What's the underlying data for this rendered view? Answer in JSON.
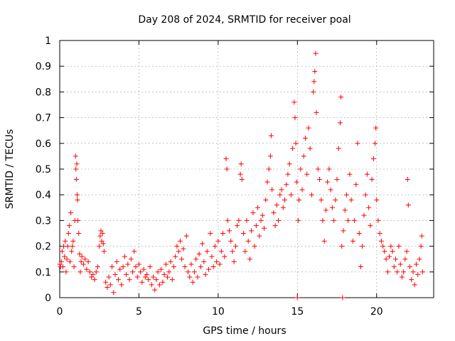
{
  "chart_data": {
    "type": "scatter",
    "title": "Day 208 of 2024, SRMTID for receiver poal",
    "xlabel": "GPS time / hours",
    "ylabel": "SRMTID / TECUs",
    "xlim": [
      0,
      23.6
    ],
    "ylim": [
      0,
      1
    ],
    "xticks": [
      "0",
      "5",
      "10",
      "15",
      "20"
    ],
    "yticks": [
      "0",
      "0.1",
      "0.2",
      "0.3",
      "0.4",
      "0.5",
      "0.6",
      "0.7",
      "0.8",
      "0.9",
      "1"
    ],
    "grid": true,
    "marker": "+",
    "color": "#ff0000",
    "series": [
      {
        "name": "SRMTID",
        "points": [
          [
            0.0,
            0.13
          ],
          [
            0.05,
            0.12
          ],
          [
            0.1,
            0.14
          ],
          [
            0.15,
            0.18
          ],
          [
            0.2,
            0.12
          ],
          [
            0.25,
            0.2
          ],
          [
            0.3,
            0.16
          ],
          [
            0.35,
            0.22
          ],
          [
            0.4,
            0.1
          ],
          [
            0.45,
            0.15
          ],
          [
            0.5,
            0.2
          ],
          [
            0.55,
            0.25
          ],
          [
            0.6,
            0.28
          ],
          [
            0.65,
            0.14
          ],
          [
            0.7,
            0.33
          ],
          [
            0.75,
            0.18
          ],
          [
            0.8,
            0.2
          ],
          [
            0.85,
            0.22
          ],
          [
            0.9,
            0.12
          ],
          [
            0.95,
            0.3
          ],
          [
            1.0,
            0.55
          ],
          [
            1.02,
            0.5
          ],
          [
            1.05,
            0.46
          ],
          [
            1.08,
            0.52
          ],
          [
            1.1,
            0.4
          ],
          [
            1.12,
            0.38
          ],
          [
            1.15,
            0.3
          ],
          [
            1.2,
            0.25
          ],
          [
            1.25,
            0.17
          ],
          [
            1.3,
            0.1
          ],
          [
            1.35,
            0.14
          ],
          [
            1.4,
            0.16
          ],
          [
            1.5,
            0.13
          ],
          [
            1.6,
            0.15
          ],
          [
            1.7,
            0.11
          ],
          [
            1.8,
            0.14
          ],
          [
            1.9,
            0.1
          ],
          [
            2.0,
            0.08
          ],
          [
            2.1,
            0.09
          ],
          [
            2.2,
            0.07
          ],
          [
            2.3,
            0.1
          ],
          [
            2.4,
            0.12
          ],
          [
            2.5,
            0.2
          ],
          [
            2.55,
            0.24
          ],
          [
            2.6,
            0.26
          ],
          [
            2.65,
            0.22
          ],
          [
            2.7,
            0.25
          ],
          [
            2.75,
            0.21
          ],
          [
            2.8,
            0.18
          ],
          [
            2.9,
            0.06
          ],
          [
            3.0,
            0.04
          ],
          [
            3.1,
            0.08
          ],
          [
            3.2,
            0.05
          ],
          [
            3.3,
            0.12
          ],
          [
            3.4,
            0.02
          ],
          [
            3.5,
            0.09
          ],
          [
            3.6,
            0.14
          ],
          [
            3.7,
            0.07
          ],
          [
            3.8,
            0.11
          ],
          [
            3.9,
            0.05
          ],
          [
            4.0,
            0.12
          ],
          [
            4.1,
            0.16
          ],
          [
            4.2,
            0.09
          ],
          [
            4.3,
            0.13
          ],
          [
            4.4,
            0.07
          ],
          [
            4.5,
            0.15
          ],
          [
            4.6,
            0.1
          ],
          [
            4.7,
            0.18
          ],
          [
            4.8,
            0.12
          ],
          [
            4.9,
            0.08
          ],
          [
            5.0,
            0.13
          ],
          [
            5.1,
            0.1
          ],
          [
            5.2,
            0.06
          ],
          [
            5.3,
            0.11
          ],
          [
            5.4,
            0.08
          ],
          [
            5.5,
            0.09
          ],
          [
            5.6,
            0.07
          ],
          [
            5.7,
            0.12
          ],
          [
            5.8,
            0.05
          ],
          [
            5.9,
            0.08
          ],
          [
            6.0,
            0.03
          ],
          [
            6.1,
            0.07
          ],
          [
            6.2,
            0.1
          ],
          [
            6.3,
            0.05
          ],
          [
            6.4,
            0.11
          ],
          [
            6.5,
            0.06
          ],
          [
            6.6,
            0.09
          ],
          [
            6.7,
            0.13
          ],
          [
            6.8,
            0.08
          ],
          [
            6.9,
            0.1
          ],
          [
            7.0,
            0.14
          ],
          [
            7.1,
            0.07
          ],
          [
            7.2,
            0.12
          ],
          [
            7.3,
            0.16
          ],
          [
            7.4,
            0.2
          ],
          [
            7.5,
            0.18
          ],
          [
            7.6,
            0.22
          ],
          [
            7.7,
            0.15
          ],
          [
            7.8,
            0.19
          ],
          [
            7.9,
            0.12
          ],
          [
            8.0,
            0.24
          ],
          [
            8.1,
            0.1
          ],
          [
            8.2,
            0.08
          ],
          [
            8.3,
            0.13
          ],
          [
            8.4,
            0.06
          ],
          [
            8.5,
            0.1
          ],
          [
            8.6,
            0.15
          ],
          [
            8.7,
            0.08
          ],
          [
            8.8,
            0.17
          ],
          [
            8.9,
            0.12
          ],
          [
            9.0,
            0.21
          ],
          [
            9.1,
            0.14
          ],
          [
            9.2,
            0.09
          ],
          [
            9.3,
            0.18
          ],
          [
            9.4,
            0.11
          ],
          [
            9.5,
            0.25
          ],
          [
            9.6,
            0.16
          ],
          [
            9.7,
            0.12
          ],
          [
            9.8,
            0.2
          ],
          [
            9.9,
            0.14
          ],
          [
            10.0,
            0.22
          ],
          [
            10.1,
            0.13
          ],
          [
            10.2,
            0.18
          ],
          [
            10.3,
            0.25
          ],
          [
            10.4,
            0.16
          ],
          [
            10.5,
            0.54
          ],
          [
            10.55,
            0.5
          ],
          [
            10.6,
            0.3
          ],
          [
            10.7,
            0.26
          ],
          [
            10.8,
            0.22
          ],
          [
            10.9,
            0.18
          ],
          [
            11.0,
            0.14
          ],
          [
            11.1,
            0.2
          ],
          [
            11.2,
            0.28
          ],
          [
            11.3,
            0.3
          ],
          [
            11.4,
            0.48
          ],
          [
            11.45,
            0.52
          ],
          [
            11.5,
            0.46
          ],
          [
            11.6,
            0.25
          ],
          [
            11.7,
            0.18
          ],
          [
            11.8,
            0.3
          ],
          [
            11.9,
            0.22
          ],
          [
            12.0,
            0.15
          ],
          [
            12.1,
            0.26
          ],
          [
            12.2,
            0.33
          ],
          [
            12.3,
            0.2
          ],
          [
            12.4,
            0.28
          ],
          [
            12.5,
            0.35
          ],
          [
            12.6,
            0.24
          ],
          [
            12.7,
            0.3
          ],
          [
            12.8,
            0.32
          ],
          [
            12.9,
            0.27
          ],
          [
            13.0,
            0.38
          ],
          [
            13.1,
            0.45
          ],
          [
            13.2,
            0.5
          ],
          [
            13.3,
            0.55
          ],
          [
            13.35,
            0.63
          ],
          [
            13.4,
            0.42
          ],
          [
            13.5,
            0.33
          ],
          [
            13.6,
            0.28
          ],
          [
            13.7,
            0.36
          ],
          [
            13.8,
            0.3
          ],
          [
            13.9,
            0.4
          ],
          [
            14.0,
            0.42
          ],
          [
            14.1,
            0.35
          ],
          [
            14.2,
            0.38
          ],
          [
            14.3,
            0.44
          ],
          [
            14.4,
            0.48
          ],
          [
            14.5,
            0.52
          ],
          [
            14.6,
            0.4
          ],
          [
            14.7,
            0.58
          ],
          [
            14.8,
            0.76
          ],
          [
            14.85,
            0.7
          ],
          [
            14.9,
            0.6
          ],
          [
            14.95,
            0.45
          ],
          [
            15.0,
            0.0
          ],
          [
            15.05,
            0.3
          ],
          [
            15.1,
            0.38
          ],
          [
            15.2,
            0.5
          ],
          [
            15.3,
            0.42
          ],
          [
            15.4,
            0.55
          ],
          [
            15.5,
            0.62
          ],
          [
            15.6,
            0.48
          ],
          [
            15.7,
            0.66
          ],
          [
            15.8,
            0.58
          ],
          [
            15.9,
            0.4
          ],
          [
            16.0,
            0.8
          ],
          [
            16.05,
            0.84
          ],
          [
            16.1,
            0.88
          ],
          [
            16.15,
            0.95
          ],
          [
            16.2,
            0.72
          ],
          [
            16.3,
            0.5
          ],
          [
            16.4,
            0.46
          ],
          [
            16.5,
            0.38
          ],
          [
            16.6,
            0.3
          ],
          [
            16.7,
            0.22
          ],
          [
            16.8,
            0.34
          ],
          [
            16.9,
            0.45
          ],
          [
            17.0,
            0.5
          ],
          [
            17.1,
            0.42
          ],
          [
            17.2,
            0.35
          ],
          [
            17.3,
            0.3
          ],
          [
            17.4,
            0.38
          ],
          [
            17.5,
            0.46
          ],
          [
            17.6,
            0.58
          ],
          [
            17.7,
            0.68
          ],
          [
            17.75,
            0.78
          ],
          [
            17.8,
            0.2
          ],
          [
            17.85,
            0.0
          ],
          [
            17.9,
            0.26
          ],
          [
            18.0,
            0.34
          ],
          [
            18.1,
            0.4
          ],
          [
            18.2,
            0.3
          ],
          [
            18.3,
            0.48
          ],
          [
            18.4,
            0.38
          ],
          [
            18.5,
            0.22
          ],
          [
            18.6,
            0.3
          ],
          [
            18.7,
            0.44
          ],
          [
            18.8,
            0.6
          ],
          [
            18.9,
            0.25
          ],
          [
            19.0,
            0.12
          ],
          [
            19.1,
            0.2
          ],
          [
            19.2,
            0.32
          ],
          [
            19.3,
            0.4
          ],
          [
            19.4,
            0.48
          ],
          [
            19.5,
            0.35
          ],
          [
            19.6,
            0.28
          ],
          [
            19.7,
            0.46
          ],
          [
            19.8,
            0.54
          ],
          [
            19.9,
            0.6
          ],
          [
            19.95,
            0.66
          ],
          [
            20.0,
            0.38
          ],
          [
            20.1,
            0.3
          ],
          [
            20.2,
            0.25
          ],
          [
            20.3,
            0.22
          ],
          [
            20.4,
            0.2
          ],
          [
            20.5,
            0.18
          ],
          [
            20.6,
            0.15
          ],
          [
            20.7,
            0.1
          ],
          [
            20.8,
            0.16
          ],
          [
            20.9,
            0.2
          ],
          [
            21.0,
            0.18
          ],
          [
            21.1,
            0.12
          ],
          [
            21.2,
            0.15
          ],
          [
            21.3,
            0.1
          ],
          [
            21.4,
            0.2
          ],
          [
            21.5,
            0.13
          ],
          [
            21.6,
            0.08
          ],
          [
            21.7,
            0.1
          ],
          [
            21.8,
            0.15
          ],
          [
            21.9,
            0.18
          ],
          [
            21.95,
            0.46
          ],
          [
            22.0,
            0.36
          ],
          [
            22.1,
            0.12
          ],
          [
            22.2,
            0.07
          ],
          [
            22.3,
            0.1
          ],
          [
            22.4,
            0.05
          ],
          [
            22.5,
            0.13
          ],
          [
            22.6,
            0.09
          ],
          [
            22.7,
            0.15
          ],
          [
            22.8,
            0.2
          ],
          [
            22.85,
            0.24
          ],
          [
            22.9,
            0.1
          ]
        ]
      }
    ]
  }
}
